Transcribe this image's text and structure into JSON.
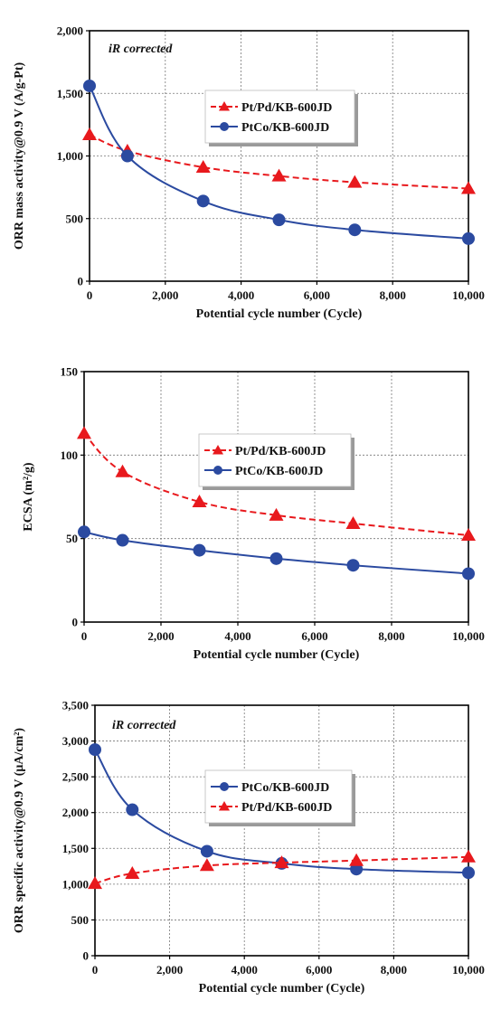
{
  "chart_data": [
    {
      "type": "line",
      "annotation": "iR corrected",
      "xlabel": "Potential cycle number (Cycle)",
      "ylabel": "ORR mass activity@0.9 V (A/g-Pt)",
      "xlim": [
        0,
        10000
      ],
      "ylim": [
        0,
        2000
      ],
      "xticks": [
        "0",
        "2,000",
        "4,000",
        "6,000",
        "8,000",
        "10,000"
      ],
      "yticks": [
        "0",
        "500",
        "1,000",
        "1,500",
        "2,000"
      ],
      "grid": true,
      "legend_position": "upper-center",
      "series": [
        {
          "name": "Pt/Pd/KB-600JD",
          "color": "#e8191d",
          "marker": "triangle",
          "line": "dashed",
          "x": [
            0,
            1000,
            3000,
            5000,
            7000,
            10000
          ],
          "y": [
            1170,
            1040,
            910,
            840,
            790,
            740
          ]
        },
        {
          "name": "PtCo/KB-600JD",
          "color": "#2b4aa0",
          "marker": "circle",
          "line": "solid",
          "x": [
            0,
            1000,
            3000,
            5000,
            7000,
            10000
          ],
          "y": [
            1560,
            1000,
            640,
            490,
            410,
            340
          ]
        }
      ]
    },
    {
      "type": "line",
      "annotation": "",
      "xlabel": "Potential cycle number (Cycle)",
      "ylabel": "ECSA (m²/g)",
      "xlim": [
        0,
        10000
      ],
      "ylim": [
        0,
        150
      ],
      "xticks": [
        "0",
        "2,000",
        "4,000",
        "6,000",
        "8,000",
        "10,000"
      ],
      "yticks": [
        "0",
        "50",
        "100",
        "150"
      ],
      "grid": true,
      "legend_position": "center",
      "series": [
        {
          "name": "Pt/Pd/KB-600JD",
          "color": "#e8191d",
          "marker": "triangle",
          "line": "dashed",
          "x": [
            0,
            1000,
            3000,
            5000,
            7000,
            10000
          ],
          "y": [
            113,
            90,
            72,
            64,
            59,
            52
          ]
        },
        {
          "name": "PtCo/KB-600JD",
          "color": "#2b4aa0",
          "marker": "circle",
          "line": "solid",
          "x": [
            0,
            1000,
            3000,
            5000,
            7000,
            10000
          ],
          "y": [
            54,
            49,
            43,
            38,
            34,
            29
          ]
        }
      ]
    },
    {
      "type": "line",
      "annotation": "iR corrected",
      "xlabel": "Potential cycle number (Cycle)",
      "ylabel": "ORR specific activity@0.9 V (μA/cm²)",
      "xlim": [
        0,
        10000
      ],
      "ylim": [
        0,
        3500
      ],
      "xticks": [
        "0",
        "2,000",
        "4,000",
        "6,000",
        "8,000",
        "10,000"
      ],
      "yticks": [
        "0",
        "500",
        "1,000",
        "1,500",
        "2,000",
        "2,500",
        "3,000",
        "3,500"
      ],
      "grid": true,
      "legend_position": "center",
      "series": [
        {
          "name": "PtCo/KB-600JD",
          "color": "#2b4aa0",
          "marker": "circle",
          "line": "solid",
          "x": [
            0,
            1000,
            3000,
            5000,
            7000,
            10000
          ],
          "y": [
            2880,
            2040,
            1460,
            1290,
            1210,
            1160
          ]
        },
        {
          "name": "Pt/Pd/KB-600JD",
          "color": "#e8191d",
          "marker": "triangle",
          "line": "dashed",
          "x": [
            0,
            1000,
            3000,
            5000,
            7000,
            10000
          ],
          "y": [
            1010,
            1150,
            1260,
            1300,
            1330,
            1380
          ]
        }
      ]
    }
  ]
}
